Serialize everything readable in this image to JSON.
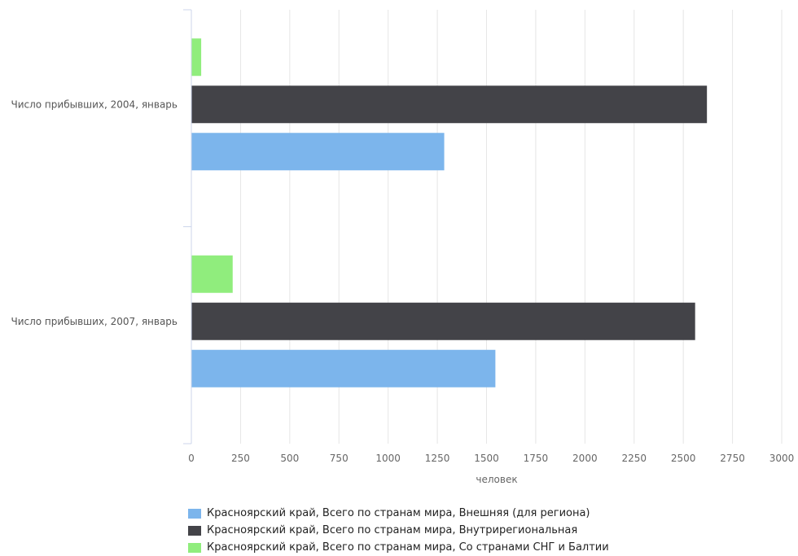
{
  "chart_data": {
    "type": "bar",
    "orientation": "horizontal",
    "categories": [
      "Число прибывших, 2004, январь",
      "Число прибывших, 2007, январь"
    ],
    "series": [
      {
        "name": "Красноярский край, Всего по странам мира, Со странами СНГ и Балтии",
        "color": "#90ed7d",
        "values": [
          50,
          210
        ]
      },
      {
        "name": "Красноярский край, Всего по странам мира, Внутрирегиональная",
        "color": "#434348",
        "values": [
          2620,
          2560
        ]
      },
      {
        "name": "Красноярский край, Всего по странам мира, Внешняя (для региона)",
        "color": "#7cb5ec",
        "values": [
          1285,
          1545
        ]
      }
    ],
    "xlabel": "человек",
    "xlim": [
      0,
      3000
    ],
    "xticks": [
      "0",
      "250",
      "500",
      "750",
      "1000",
      "1250",
      "1500",
      "1750",
      "2000",
      "2250",
      "2500",
      "2750",
      "3000"
    ],
    "grid": true,
    "legend_position": "bottom-left"
  },
  "legend": [
    {
      "label": "Красноярский край, Всего по странам мира, Внешняя (для региона)",
      "color": "#7cb5ec"
    },
    {
      "label": "Красноярский край, Всего по странам мира, Внутрирегиональная",
      "color": "#434348"
    },
    {
      "label": "Красноярский край, Всего по странам мира, Со странами СНГ и Балтии",
      "color": "#90ed7d"
    }
  ]
}
